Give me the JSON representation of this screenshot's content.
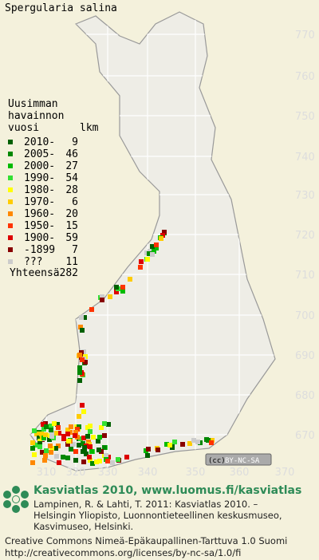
{
  "title": "Spergularia salina",
  "legend": {
    "heading": [
      "Uusimman",
      "havainnon"
    ],
    "col_year": "vuosi",
    "col_count": "lkm",
    "items": [
      {
        "label": "2010-",
        "count": 9,
        "color": "#006000"
      },
      {
        "label": "2005-",
        "count": 46,
        "color": "#008800"
      },
      {
        "label": "2000-",
        "count": 27,
        "color": "#00bb00"
      },
      {
        "label": "1990-",
        "count": 54,
        "color": "#33e033"
      },
      {
        "label": "1980-",
        "count": 28,
        "color": "#ffff00"
      },
      {
        "label": "1970-",
        "count": 6,
        "color": "#ffcc00"
      },
      {
        "label": "1960-",
        "count": 20,
        "color": "#ff8800"
      },
      {
        "label": "1950-",
        "count": 15,
        "color": "#ff3300"
      },
      {
        "label": "1900-",
        "count": 59,
        "color": "#dd0000"
      },
      {
        "label": "-1899",
        "count": 7,
        "color": "#880000"
      },
      {
        "label": "???",
        "count": 11,
        "color": "#cccccc"
      }
    ],
    "total_label": "Yhteensä",
    "total": 282
  },
  "grid": {
    "y_labels": [
      770,
      760,
      750,
      740,
      730,
      720,
      710,
      700,
      690,
      680,
      670
    ],
    "x_labels": [
      310,
      320,
      330,
      340,
      350,
      360,
      370
    ]
  },
  "license_badge": "BY-NC-SA",
  "footer": {
    "heading": "Kasviatlas 2010, www.luomus.fi/kasviatlas",
    "citation": [
      "Lampinen, R. & Lahti, T. 2011: Kasviatlas 2010. –",
      "Helsingin Yliopisto, Luonnontieteellinen keskusmuseo,",
      "Kasvimuseo, Helsinki."
    ],
    "license": [
      "Creative Commons Nimeä-Epäkaupallinen-Tarttuva 1.0 Suomi",
      "http://creativecommons.org/licenses/by-nc-sa/1.0/fi"
    ]
  }
}
